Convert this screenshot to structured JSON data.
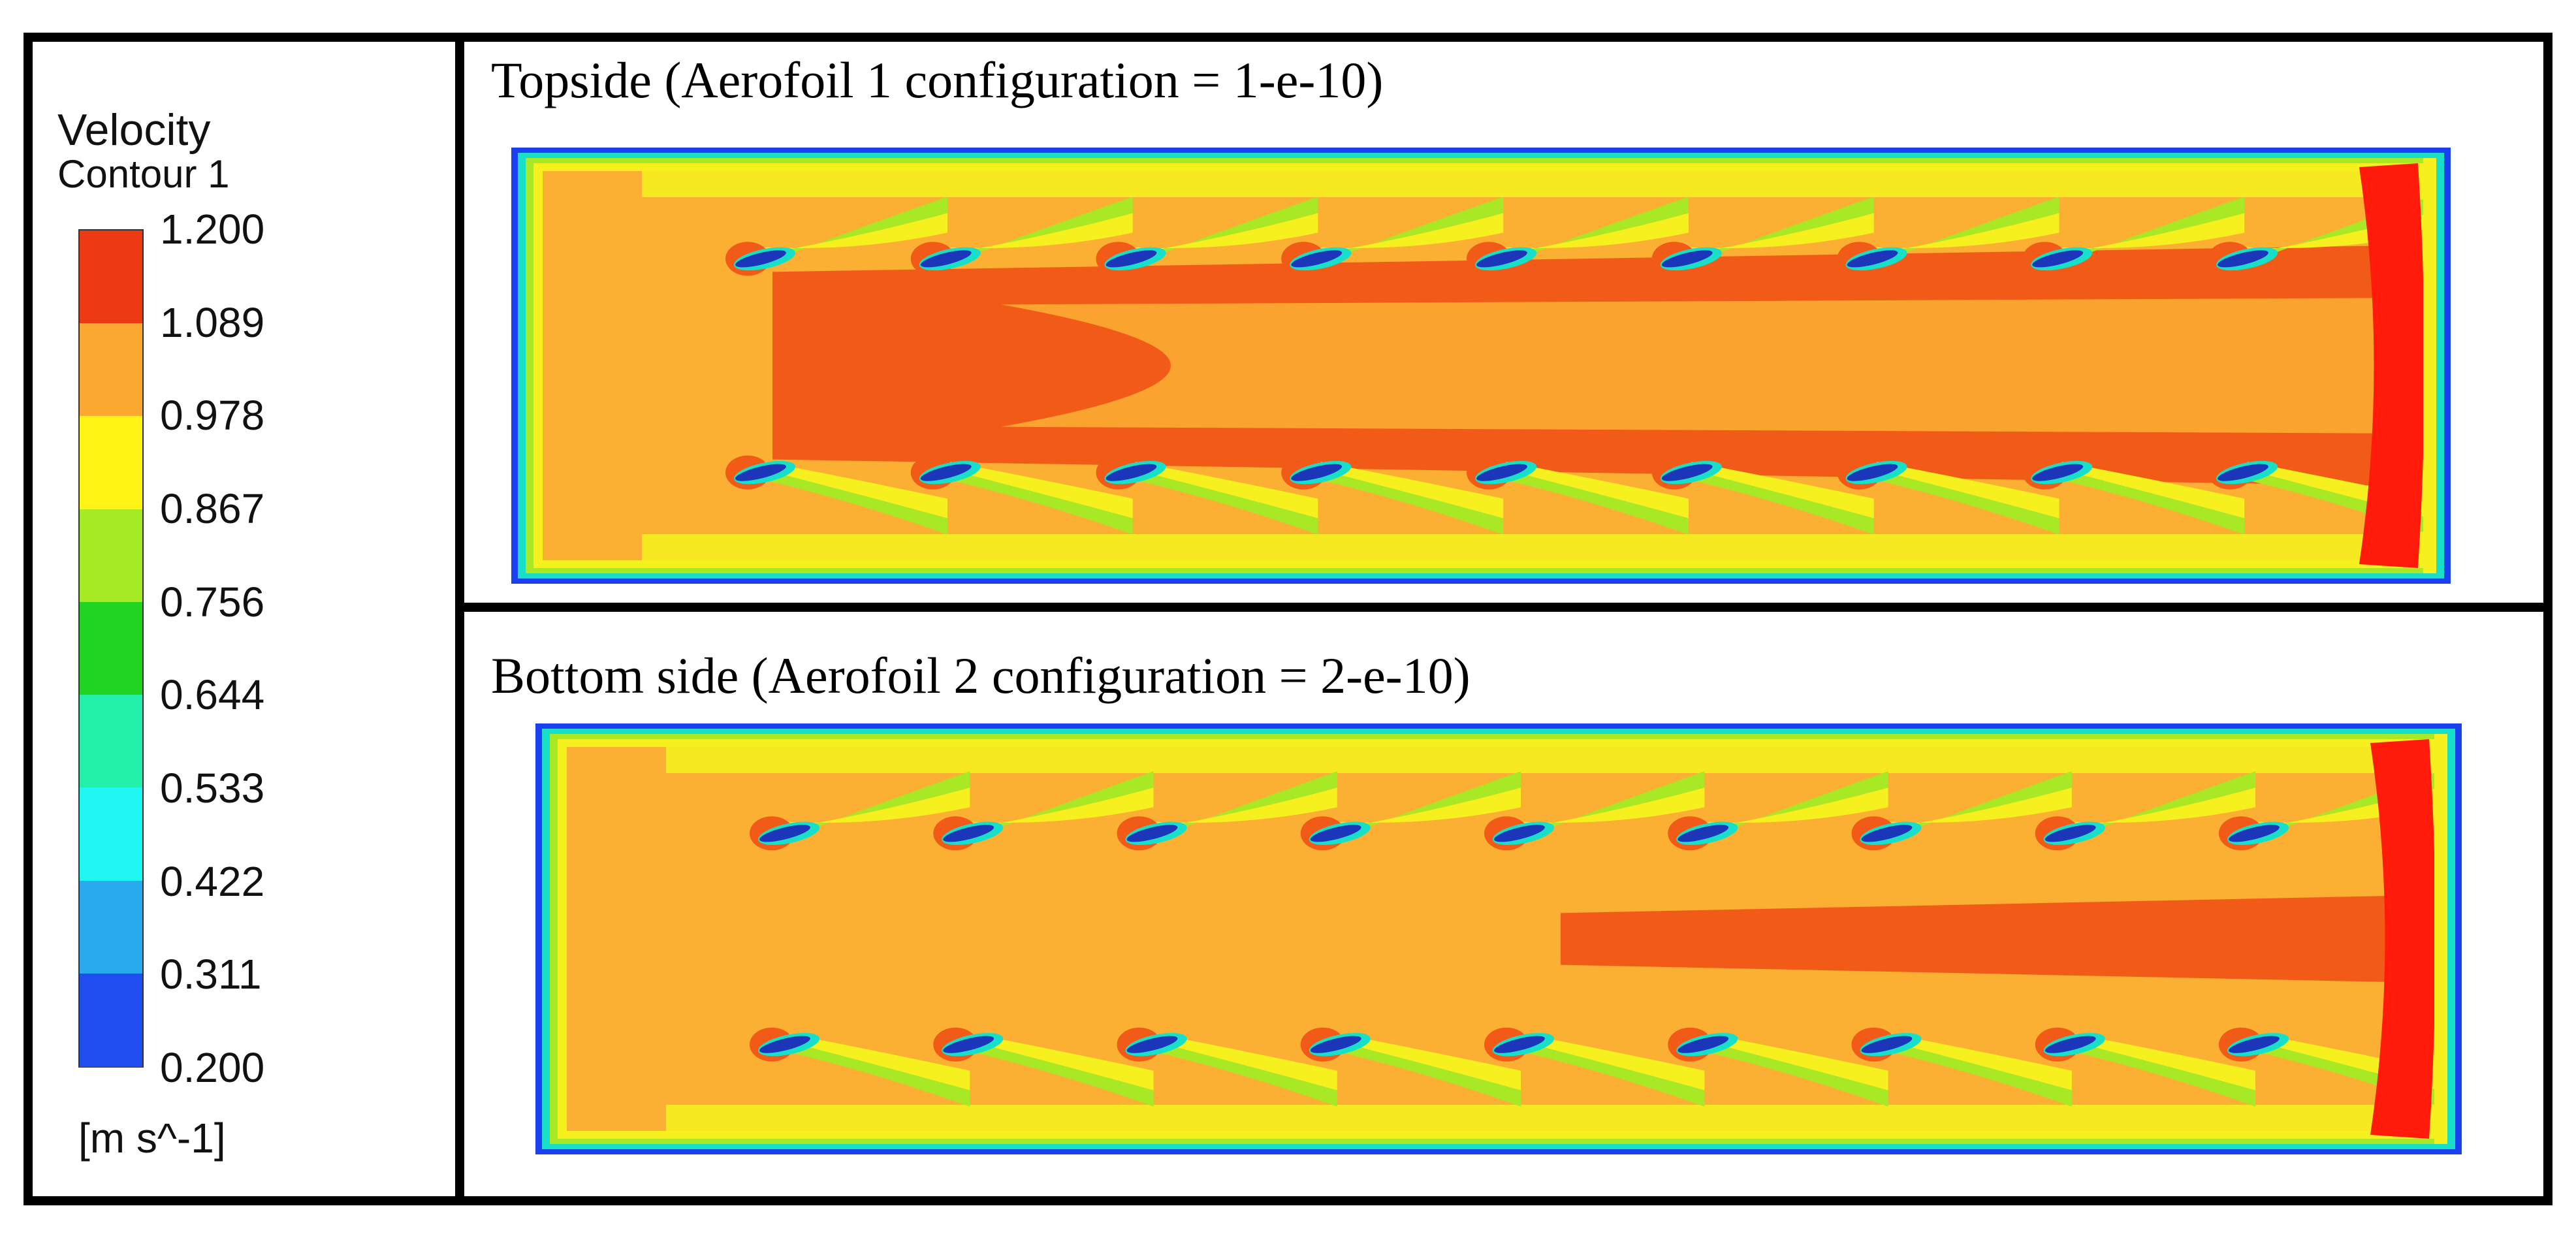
{
  "legend": {
    "title": "Velocity",
    "subtitle": "Contour 1",
    "unit": "[m s^-1]",
    "ticks": [
      "1.200",
      "1.089",
      "0.978",
      "0.867",
      "0.756",
      "0.644",
      "0.533",
      "0.422",
      "0.311",
      "0.200"
    ],
    "band_colors": [
      "#ee3a12",
      "#fba830",
      "#fff314",
      "#a6ea26",
      "#22d422",
      "#23f0a8",
      "#1ff6f2",
      "#29a9ee",
      "#1f4df0"
    ]
  },
  "panels": [
    {
      "title": "Topside (Aerofoil 1 configuration = 1-e-10)",
      "aerofoil_rows": 2,
      "aerofoils_per_row": 9
    },
    {
      "title": "Bottom side (Aerofoil 2 configuration = 2-e-10)",
      "aerofoil_rows": 2,
      "aerofoils_per_row": 9
    }
  ],
  "field_colors": {
    "base": "#fbb034",
    "high": "#f25a17",
    "max": "#ff1a0a",
    "mid": "#f6f01f",
    "low_green": "#a8e824",
    "wall_teal": "#18e0c8",
    "wall_blue": "#1a40f0",
    "foil": "#1b36b8"
  }
}
